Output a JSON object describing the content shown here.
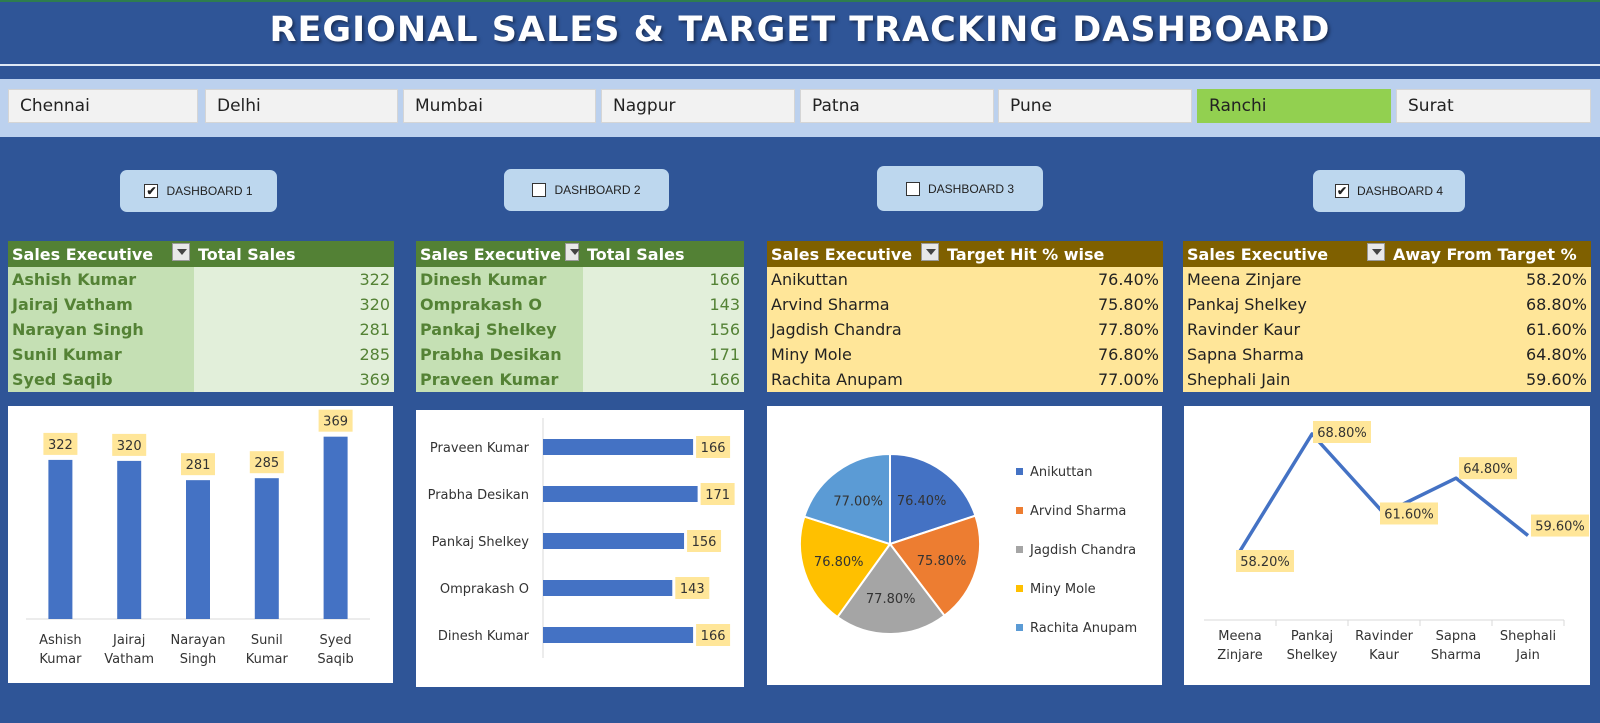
{
  "title": "REGIONAL SALES & TARGET TRACKING DASHBOARD",
  "cities": [
    {
      "label": "Chennai",
      "selected": false
    },
    {
      "label": "Delhi",
      "selected": false
    },
    {
      "label": "Mumbai",
      "selected": false
    },
    {
      "label": "Nagpur",
      "selected": false
    },
    {
      "label": "Patna",
      "selected": false
    },
    {
      "label": "Pune",
      "selected": false
    },
    {
      "label": "Ranchi",
      "selected": true
    },
    {
      "label": "Surat",
      "selected": false
    }
  ],
  "dashboards": [
    {
      "label": "DASHBOARD 1",
      "checked": true
    },
    {
      "label": "DASHBOARD 2",
      "checked": false
    },
    {
      "label": "DASHBOARD 3",
      "checked": false
    },
    {
      "label": "DASHBOARD 4",
      "checked": true
    }
  ],
  "tables": [
    {
      "col1": "Sales Executive",
      "col2": "Total Sales",
      "rows": [
        [
          "Ashish Kumar",
          "322"
        ],
        [
          "Jairaj Vatham",
          "320"
        ],
        [
          "Narayan Singh",
          "281"
        ],
        [
          "Sunil Kumar",
          "285"
        ],
        [
          "Syed Saqib",
          "369"
        ]
      ]
    },
    {
      "col1": "Sales Executive",
      "col2": "Total Sales",
      "rows": [
        [
          "Dinesh Kumar",
          "166"
        ],
        [
          "Omprakash O",
          "143"
        ],
        [
          "Pankaj Shelkey",
          "156"
        ],
        [
          "Prabha Desikan",
          "171"
        ],
        [
          "Praveen Kumar",
          "166"
        ]
      ]
    },
    {
      "col1": "Sales Executive",
      "col2": "Target Hit % wise",
      "rows": [
        [
          "Anikuttan",
          "76.40%"
        ],
        [
          "Arvind Sharma",
          "75.80%"
        ],
        [
          "Jagdish Chandra",
          "77.80%"
        ],
        [
          "Miny Mole",
          "76.80%"
        ],
        [
          "Rachita Anupam",
          "77.00%"
        ]
      ]
    },
    {
      "col1": "Sales Executive",
      "col2": "Away From Target %",
      "rows": [
        [
          "Meena Zinjare",
          "58.20%"
        ],
        [
          "Pankaj Shelkey",
          "68.80%"
        ],
        [
          "Ravinder Kaur",
          "61.60%"
        ],
        [
          "Sapna Sharma",
          "64.80%"
        ],
        [
          "Shephali Jain",
          "59.60%"
        ]
      ]
    }
  ],
  "chart_data": [
    {
      "type": "bar",
      "categories": [
        "Ashish Kumar",
        "Jairaj Vatham",
        "Narayan Singh",
        "Sunil Kumar",
        "Syed Saqib"
      ],
      "category_lines": [
        [
          "Ashish",
          "Kumar"
        ],
        [
          "Jairaj",
          "Vatham"
        ],
        [
          "Narayan",
          "Singh"
        ],
        [
          "Sunil",
          "Kumar"
        ],
        [
          "Syed",
          "Saqib"
        ]
      ],
      "values": [
        322,
        320,
        281,
        285,
        369
      ],
      "labels": [
        "322",
        "320",
        "281",
        "285",
        "369"
      ],
      "ylim": [
        0,
        400
      ],
      "color": "#4472c4"
    },
    {
      "type": "bar",
      "orientation": "horizontal",
      "categories": [
        "Praveen Kumar",
        "Prabha Desikan",
        "Pankaj Shelkey",
        "Omprakash O",
        "Dinesh Kumar"
      ],
      "values": [
        166,
        171,
        156,
        143,
        166
      ],
      "labels": [
        "166",
        "171",
        "156",
        "143",
        "166"
      ],
      "xlim": [
        0,
        180
      ],
      "color": "#4472c4"
    },
    {
      "type": "pie",
      "categories": [
        "Anikuttan",
        "Arvind Sharma",
        "Jagdish Chandra",
        "Miny Mole",
        "Rachita Anupam"
      ],
      "values": [
        76.4,
        75.8,
        77.8,
        76.8,
        77.0
      ],
      "labels": [
        "76.40%",
        "75.80%",
        "77.80%",
        "76.80%",
        "77.00%"
      ],
      "colors": [
        "#4472c4",
        "#ed7d31",
        "#a5a5a5",
        "#ffc000",
        "#5b9bd5"
      ],
      "legend": "right"
    },
    {
      "type": "line",
      "categories": [
        "Meena Zinjare",
        "Pankaj Shelkey",
        "Ravinder Kaur",
        "Sapna Sharma",
        "Shephali Jain"
      ],
      "category_lines": [
        [
          "Meena",
          "Zinjare"
        ],
        [
          "Pankaj",
          "Shelkey"
        ],
        [
          "Ravinder",
          "Kaur"
        ],
        [
          "Sapna",
          "Sharma"
        ],
        [
          "Shephali",
          "Jain"
        ]
      ],
      "values": [
        58.2,
        68.8,
        61.6,
        64.8,
        59.6
      ],
      "labels": [
        "58.20%",
        "68.80%",
        "61.60%",
        "64.80%",
        "59.60%"
      ],
      "ylim": [
        50,
        72
      ],
      "color": "#4472c4"
    }
  ]
}
